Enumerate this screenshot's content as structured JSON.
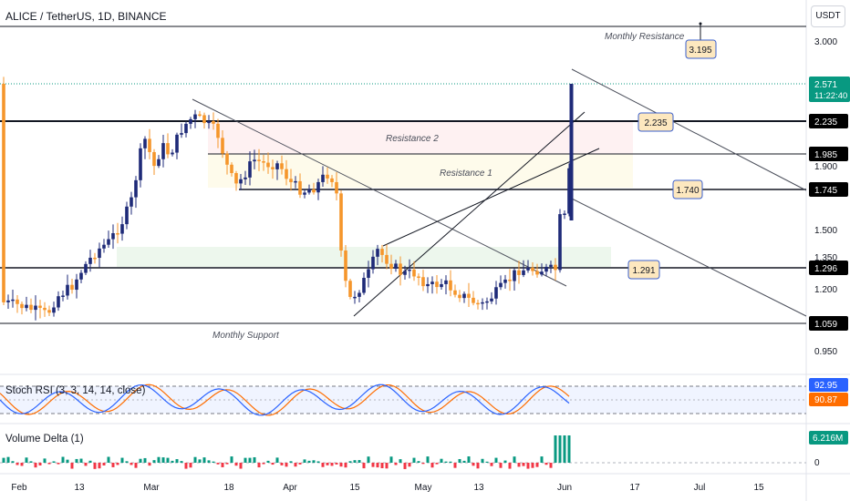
{
  "header": {
    "title": "ALICE / TetherUS, 1D, BINANCE"
  },
  "currency_button": "USDT",
  "chart_data": {
    "type": "candlestick",
    "symbol": "ALICE / TetherUS",
    "interval": "1D",
    "exchange": "BINANCE",
    "y_axis": {
      "scale": "log",
      "ticks": [
        "3.000",
        "1.900",
        "1.500",
        "1.350",
        "1.200",
        "0.950"
      ]
    },
    "x_axis": {
      "ticks": [
        "Feb",
        "13",
        "Mar",
        "18",
        "Apr",
        "15",
        "May",
        "13",
        "Jun",
        "17",
        "Jul",
        "15"
      ]
    },
    "last_price": "2.571",
    "countdown": "11:22:40",
    "levels": [
      {
        "value": "2.235",
        "tag": "2.235"
      },
      {
        "value": "1.985",
        "tag": "1.985"
      },
      {
        "value": "1.745",
        "tag": "1.745"
      },
      {
        "value": "1.296",
        "tag": "1.296"
      },
      {
        "value": "1.059",
        "tag": "1.059"
      }
    ],
    "callouts": [
      "3.195",
      "2.235",
      "1.740",
      "1.291"
    ],
    "annotations": [
      "Monthly Resistance",
      "Resistance 2",
      "Resistance 1",
      "Monthly Support"
    ],
    "indicators": [
      {
        "name": "Stoch RSI (3, 3, 14, 14, close)",
        "values": [
          "92.95",
          "90.87"
        ]
      },
      {
        "name": "Volume Delta (1)",
        "value": "6.216M",
        "zero_tick": "0"
      }
    ],
    "colors": {
      "up": "#1e2a78",
      "down": "#f5962b",
      "stoch_k": "#2962ff",
      "stoch_d": "#ff6d00",
      "vol_up": "#089981",
      "vol_down": "#f23645"
    }
  }
}
